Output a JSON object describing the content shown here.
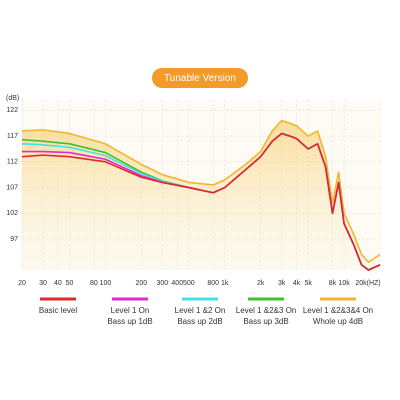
{
  "chart_data": {
    "type": "line",
    "title": "Tunable Version",
    "y_label": "(dB)",
    "x": [
      20,
      30,
      50,
      100,
      200,
      300,
      500,
      800,
      1000,
      1500,
      2000,
      2500,
      3000,
      3500,
      4000,
      5000,
      6000,
      7000,
      8000,
      9000,
      10000,
      12000,
      14000,
      16000,
      20000
    ],
    "log_x": true,
    "xlim": [
      20,
      20000
    ],
    "ylim": [
      91,
      124
    ],
    "grid": true,
    "yticks": [
      97,
      102,
      107,
      112,
      117,
      122
    ],
    "xticks": [
      20,
      30,
      40,
      50,
      80,
      100,
      200,
      300,
      400,
      500,
      800,
      {
        "value": 1000,
        "label": "1k"
      },
      {
        "value": 2000,
        "label": "2k"
      },
      {
        "value": 3000,
        "label": "3k"
      },
      {
        "value": 4000,
        "label": "4k"
      },
      {
        "value": 5000,
        "label": "5k"
      },
      {
        "value": 8000,
        "label": "8k"
      },
      {
        "value": 10000,
        "label": "10k"
      },
      {
        "value": 20000,
        "label": "20k(HZ)"
      }
    ],
    "series": [
      {
        "name": "Basic level",
        "color": "#e3262d",
        "values": [
          113,
          113.3,
          113,
          112,
          109,
          108,
          107,
          106,
          107,
          110.5,
          113,
          116,
          117.5,
          117,
          116.5,
          114.5,
          115.5,
          111,
          102,
          108,
          100,
          96,
          92,
          91,
          92
        ]
      },
      {
        "name": "Level 1 On\nBass up 1dB",
        "color": "#e02ad2",
        "values": [
          114,
          114,
          113.8,
          112.5,
          109.3,
          108,
          107,
          106,
          107,
          110.5,
          113,
          116,
          117.5,
          117,
          116.5,
          114.5,
          115.5,
          111,
          102,
          108,
          100,
          96,
          92,
          91,
          92
        ]
      },
      {
        "name": "Level 1 &2 On\nBass up 2dB",
        "color": "#44e0e4",
        "values": [
          115.5,
          115.3,
          114.8,
          113.2,
          109.7,
          108.2,
          107,
          106,
          107,
          110.5,
          113,
          116,
          117.5,
          117,
          116.5,
          114.5,
          115.5,
          111,
          102,
          108,
          100,
          96,
          92,
          91,
          92
        ]
      },
      {
        "name": "Level 1 &2&3 On\nBass up 3dB",
        "color": "#3ec12a",
        "values": [
          116.3,
          116,
          115.5,
          113.8,
          110,
          108.3,
          107,
          106,
          107,
          110.5,
          113,
          116,
          117.5,
          117,
          116.5,
          114.5,
          115.5,
          111,
          102,
          108,
          100,
          96,
          92,
          91,
          92
        ]
      },
      {
        "name": "Level 1 &2&3&4 On\nWhole up 4dB",
        "color": "#f2b62c",
        "values": [
          118,
          118.2,
          117.5,
          115.5,
          111.5,
          109.5,
          108,
          107.5,
          108.5,
          111.5,
          114,
          118,
          120,
          119.5,
          119,
          117,
          118,
          113,
          104,
          110,
          102,
          98,
          94,
          92.5,
          94
        ]
      }
    ]
  }
}
